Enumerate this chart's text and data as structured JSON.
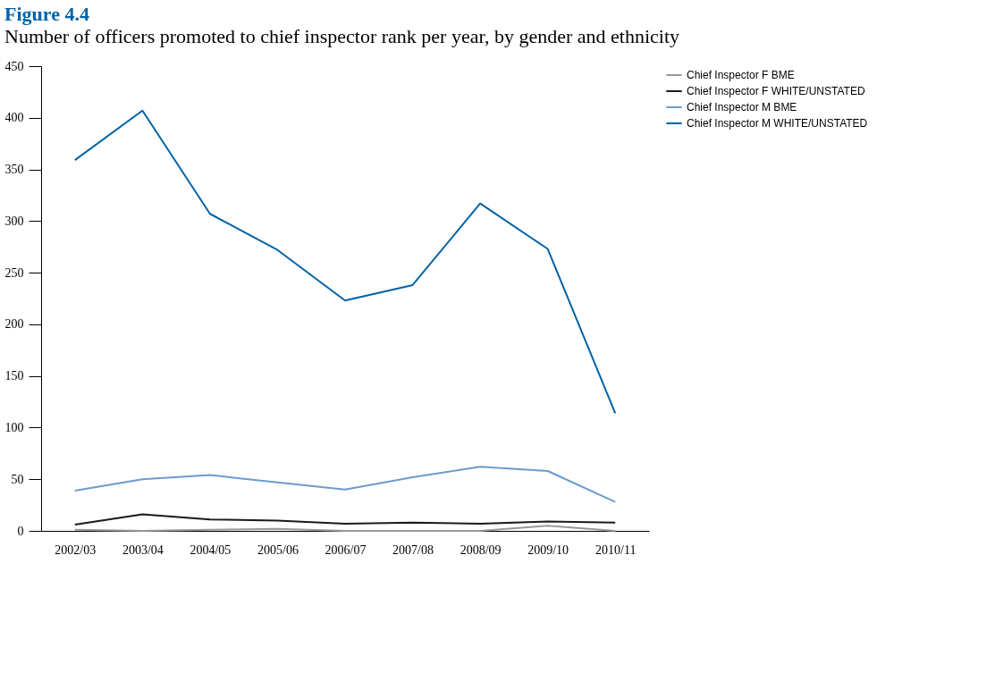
{
  "chart_data": {
    "type": "line",
    "title": "Figure 4.4",
    "subtitle": "Number of officers promoted to chief inspector rank per year, by gender and ethnicity",
    "categories": [
      "2002/03",
      "2003/04",
      "2004/05",
      "2005/06",
      "2006/07",
      "2007/08",
      "2008/09",
      "2009/10",
      "2010/11"
    ],
    "series": [
      {
        "name": "Chief Inspector F BME",
        "color": "#999999",
        "values": [
          1,
          0,
          1,
          2,
          0,
          0,
          0,
          5,
          0
        ]
      },
      {
        "name": "Chief Inspector F WHITE/UNSTATED",
        "color": "#1a1a1a",
        "values": [
          6,
          16,
          11,
          10,
          7,
          8,
          7,
          9,
          8
        ]
      },
      {
        "name": "Chief Inspector M BME",
        "color": "#6b9bd1",
        "values": [
          39,
          50,
          54,
          47,
          40,
          52,
          62,
          58,
          28
        ]
      },
      {
        "name": "Chief Inspector M WHITE/UNSTATED",
        "color": "#0063a6",
        "values": [
          359,
          407,
          307,
          272,
          223,
          238,
          317,
          273,
          114
        ]
      }
    ],
    "ylim": [
      0,
      450
    ],
    "yticks": [
      0,
      50,
      100,
      150,
      200,
      250,
      300,
      350,
      400,
      450
    ],
    "grid": false,
    "legend": "right",
    "marker": "none",
    "line_style": "solid"
  }
}
